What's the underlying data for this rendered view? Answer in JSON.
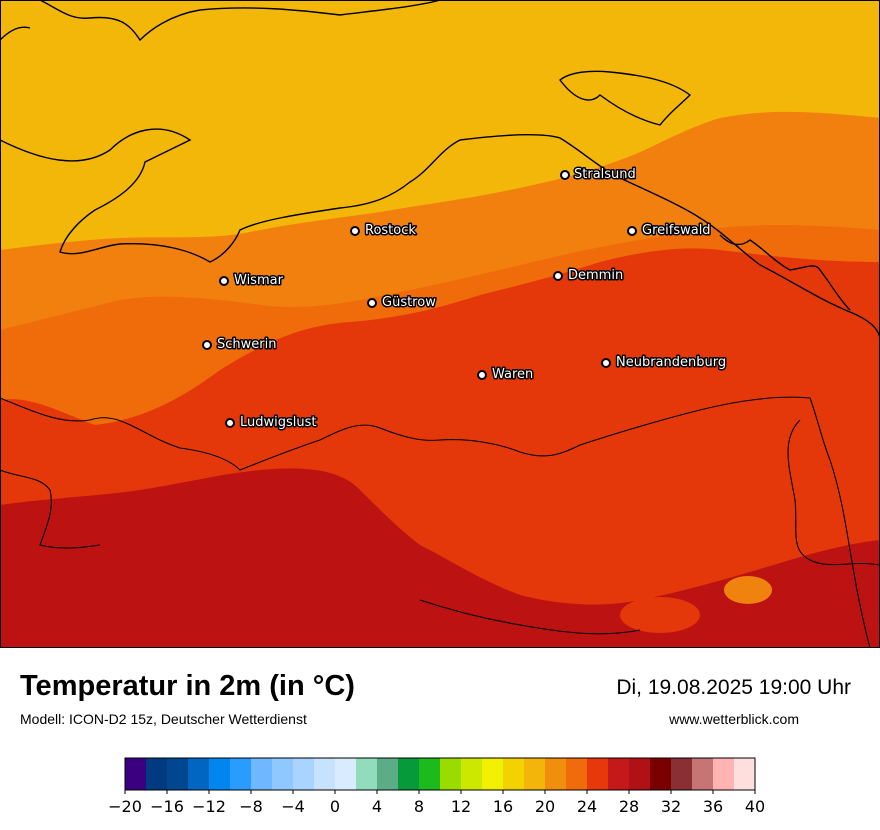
{
  "title": "Temperatur in 2m (in °C)",
  "model": "Modell: ICON-D2 15z, Deutscher Wetterdienst",
  "datetime": "Di, 19.08.2025 19:00 Uhr",
  "website": "www.wetterblick.com",
  "cities": [
    {
      "name": "Stralsund"
    },
    {
      "name": "Rostock"
    },
    {
      "name": "Greifswald"
    },
    {
      "name": "Wismar"
    },
    {
      "name": "Demmin"
    },
    {
      "name": "Güstrow"
    },
    {
      "name": "Schwerin"
    },
    {
      "name": "Neubrandenburg"
    },
    {
      "name": "Waren"
    },
    {
      "name": "Ludwigslust"
    }
  ],
  "colorbar": {
    "min": -20,
    "max": 40,
    "step": 2,
    "tick_labels": [
      "−20",
      "−16",
      "−12",
      "−8",
      "−4",
      "0",
      "4",
      "8",
      "12",
      "16",
      "20",
      "24",
      "28",
      "32",
      "36",
      "40"
    ],
    "colors": [
      "#3b0080",
      "#003a80",
      "#00478f",
      "#0066c2",
      "#0086ee",
      "#2b9cff",
      "#6fb8ff",
      "#8fc8ff",
      "#a9d4ff",
      "#c6e2ff",
      "#d9ebff",
      "#90dcbc",
      "#5cac86",
      "#079a3a",
      "#1cba1c",
      "#9adc00",
      "#cce800",
      "#f0f000",
      "#f2d200",
      "#f3b50a",
      "#f28e0e",
      "#f06c0a",
      "#e6380a",
      "#c3191a",
      "#b01117",
      "#7a0000",
      "#8a3034",
      "#c77474",
      "#ffb3b3",
      "#ffdede"
    ]
  },
  "palette": {
    "temp_18_20": "#f2b90a",
    "temp_20_22": "#f0820e",
    "temp_22_24": "#f06c0a",
    "temp_24_26": "#e5380a",
    "temp_26_28": "#bf1212"
  }
}
